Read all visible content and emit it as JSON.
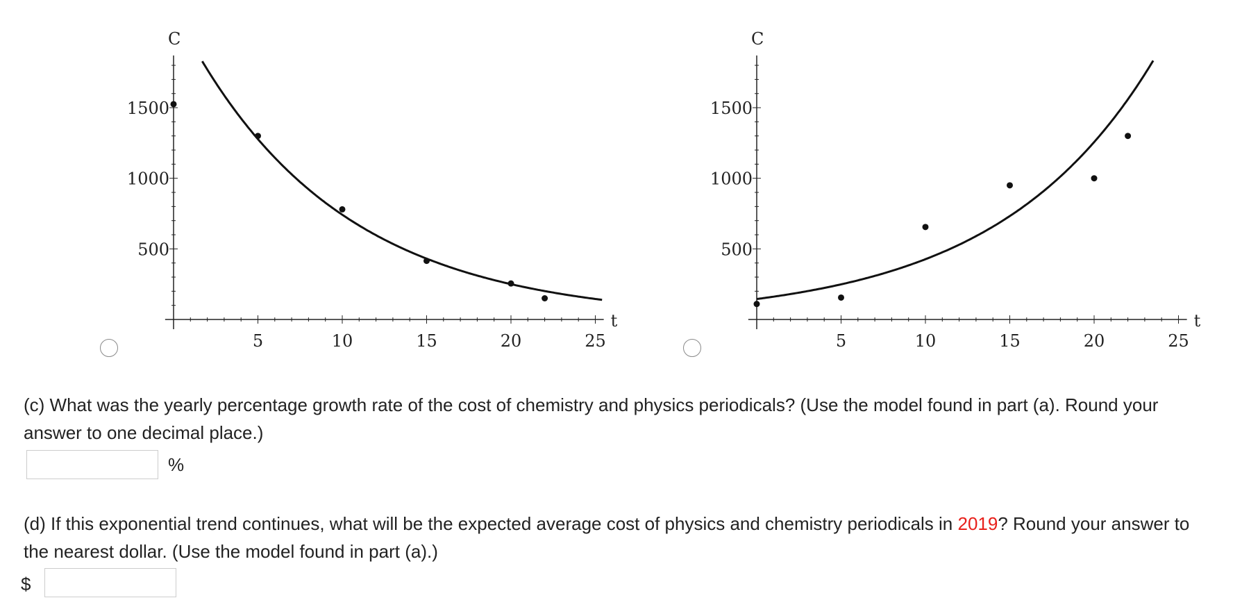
{
  "options": [
    {
      "radio_selected": false,
      "chart_data": {
        "type": "scatter",
        "fit": "exponential decay",
        "title": "",
        "xlabel": "t",
        "ylabel": "C",
        "xlim": [
          -0.5,
          25.5
        ],
        "ylim": [
          0,
          1870
        ],
        "xticks": [
          5,
          10,
          15,
          20,
          25
        ],
        "yticks": [
          500,
          1000,
          1500
        ],
        "grid": false,
        "points": [
          {
            "x": 0,
            "y": 1525
          },
          {
            "x": 5,
            "y": 1300
          },
          {
            "x": 10,
            "y": 780
          },
          {
            "x": 15,
            "y": 415
          },
          {
            "x": 20,
            "y": 255
          },
          {
            "x": 22,
            "y": 150
          }
        ],
        "curve": {
          "a": 2200,
          "b": 0.897
        }
      }
    },
    {
      "radio_selected": false,
      "chart_data": {
        "type": "scatter",
        "fit": "exponential growth",
        "title": "",
        "xlabel": "t",
        "ylabel": "C",
        "xlim": [
          -0.5,
          25.5
        ],
        "ylim": [
          0,
          1870
        ],
        "xticks": [
          5,
          10,
          15,
          20,
          25
        ],
        "yticks": [
          500,
          1000,
          1500
        ],
        "grid": false,
        "points": [
          {
            "x": 0,
            "y": 110
          },
          {
            "x": 5,
            "y": 155
          },
          {
            "x": 10,
            "y": 655
          },
          {
            "x": 15,
            "y": 950
          },
          {
            "x": 20,
            "y": 1000
          },
          {
            "x": 22,
            "y": 1300
          }
        ],
        "curve": {
          "a": 145,
          "b": 1.114
        }
      }
    }
  ],
  "part_c": {
    "text": "(c) What was the yearly percentage growth rate of the cost of chemistry and physics periodicals? (Use the model found in part (a). Round your answer to one decimal place.)",
    "answer_value": "",
    "unit": "%"
  },
  "part_d": {
    "text_before": "(d) If this exponential trend continues, what will be the expected average cost of physics and chemistry periodicals in ",
    "year": "2019",
    "text_after": "? Round your answer to the nearest dollar. (Use the model found in part (a).)",
    "answer_value": "",
    "unit": "$"
  },
  "colors": {
    "text": "#222222",
    "highlight": "#e8201b",
    "input_border": "#cccccc"
  }
}
